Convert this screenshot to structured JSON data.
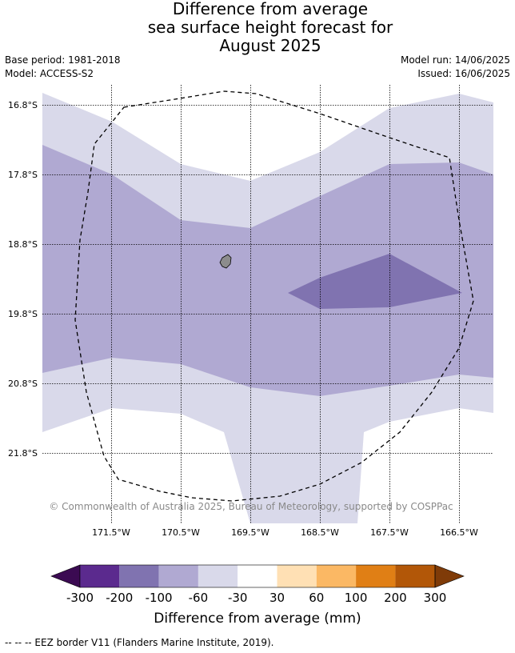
{
  "title": {
    "line1": "Difference from average",
    "line2": "sea surface height forecast for",
    "line3": "August 2025"
  },
  "meta": {
    "base_period": "Base period: 1981-2018",
    "model": "Model: ACCESS-S2",
    "model_run": "Model run: 14/06/2025",
    "issued": "Issued: 16/06/2025"
  },
  "map": {
    "latitude_labels": [
      "16.8°S",
      "17.8°S",
      "18.8°S",
      "19.8°S",
      "20.8°S",
      "21.8°S"
    ],
    "longitude_labels": [
      "171.5°W",
      "170.5°W",
      "169.5°W",
      "168.5°W",
      "167.5°W",
      "166.5°W"
    ],
    "copyright": "© Commonwealth of Australia 2025, Bureau of Meteorology, supported by COSPPac",
    "ocean_color": "#ffffff",
    "land_color": "#8c8c8c"
  },
  "colorbar": {
    "ticks": [
      "-300",
      "-200",
      "-100",
      "-60",
      "-30",
      "30",
      "60",
      "100",
      "200",
      "300"
    ],
    "colors": [
      "#5b2a8e",
      "#8073b0",
      "#b0a9d2",
      "#d9d9ea",
      "#ffffff",
      "#ffe0b4",
      "#fbb864",
      "#e07f15",
      "#b25708"
    ],
    "under_color": "#3b0a52",
    "over_color": "#7f3b08",
    "label": "Difference from average (mm)"
  },
  "legend": {
    "eez": "--  --  -- EEZ border V11 (Flanders Marine Institute, 2019)."
  }
}
